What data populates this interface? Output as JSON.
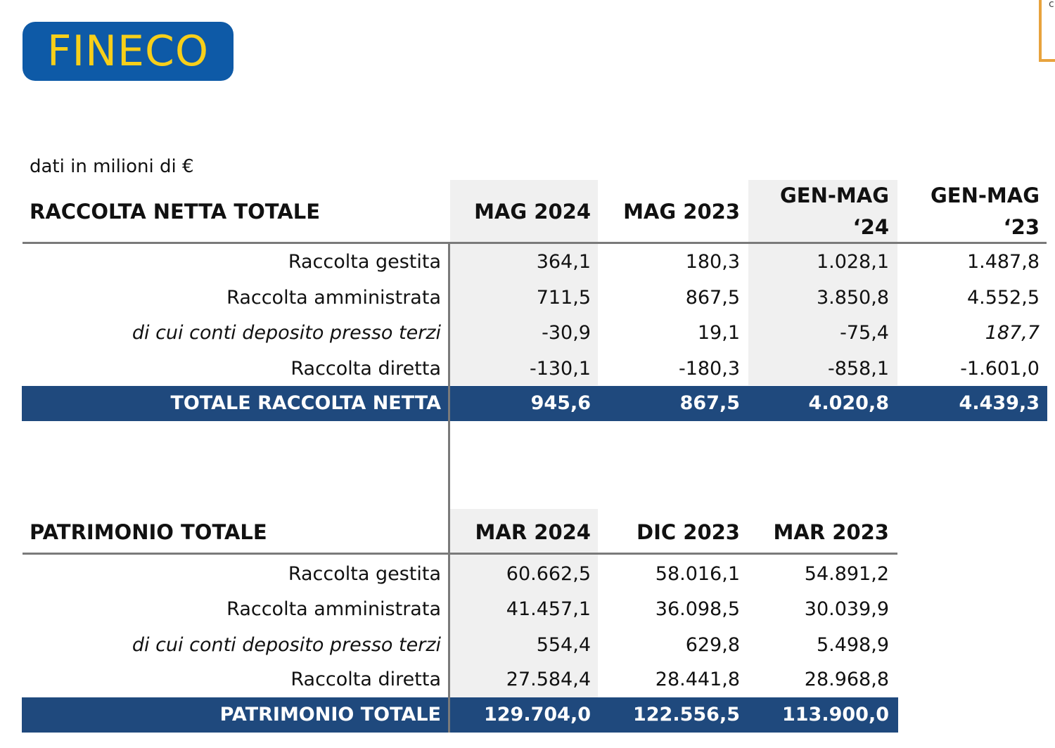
{
  "logo": {
    "text": "FINECO",
    "bg_color": "#0e5aa7",
    "text_color": "#f7cf1a"
  },
  "corner_text": "c",
  "units_note": "dati in milioni di €",
  "accent_color": "#1f497d",
  "table1": {
    "title": "RACCOLTA NETTA TOTALE",
    "col1": "MAG 2024",
    "col2": "MAG 2023",
    "col3_l1": "GEN-MAG",
    "col3_l2": "‘24",
    "col4_l1": "GEN-MAG",
    "col4_l2": "‘23",
    "rows": [
      {
        "label": "Raccolta gestita",
        "v1": "364,1",
        "v2": "180,3",
        "v3": "1.028,1",
        "v4": "1.487,8"
      },
      {
        "label": "Raccolta amministrata",
        "v1": "711,5",
        "v2": "867,5",
        "v3": "3.850,8",
        "v4": "4.552,5"
      },
      {
        "label": "di cui conti deposito presso terzi",
        "v1": "-30,9",
        "v2": "19,1",
        "v3": "-75,4",
        "v4": "187,7"
      },
      {
        "label": "Raccolta diretta",
        "v1": "-130,1",
        "v2": "-180,3",
        "v3": "-858,1",
        "v4": "-1.601,0"
      }
    ],
    "total": {
      "label": "TOTALE RACCOLTA NETTA",
      "v1": "945,6",
      "v2": "867,5",
      "v3": "4.020,8",
      "v4": "4.439,3"
    }
  },
  "table2": {
    "title": "PATRIMONIO TOTALE",
    "col1": "MAR 2024",
    "col2": "DIC 2023",
    "col3": "MAR 2023",
    "rows": [
      {
        "label": "Raccolta gestita",
        "v1": "60.662,5",
        "v2": "58.016,1",
        "v3": "54.891,2"
      },
      {
        "label": "Raccolta amministrata",
        "v1": "41.457,1",
        "v2": "36.098,5",
        "v3": "30.039,9"
      },
      {
        "label": "di cui conti deposito presso terzi",
        "v1": "554,4",
        "v2": "629,8",
        "v3": "5.498,9"
      },
      {
        "label": "Raccolta diretta",
        "v1": "27.584,4",
        "v2": "28.441,8",
        "v3": "28.968,8"
      }
    ],
    "total": {
      "label": "PATRIMONIO TOTALE",
      "v1": "129.704,0",
      "v2": "122.556,5",
      "v3": "113.900,0"
    }
  }
}
